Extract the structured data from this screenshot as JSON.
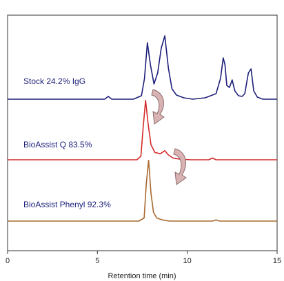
{
  "chart_data": {
    "type": "line",
    "xlabel": "Retention time (min)",
    "xlim": [
      0,
      15
    ],
    "xticks": [
      0,
      5,
      10,
      15
    ],
    "grid": false,
    "legend": "inline labels above each trace",
    "series": [
      {
        "name": "Stock 24.2% IgG",
        "color": "#1c1f7a",
        "x": [
          0,
          4.0,
          5.4,
          5.6,
          5.8,
          7.0,
          7.45,
          7.62,
          7.78,
          7.95,
          8.15,
          8.35,
          8.55,
          8.75,
          8.95,
          9.15,
          9.4,
          9.8,
          10.3,
          11.0,
          11.6,
          11.85,
          12.0,
          12.1,
          12.2,
          12.35,
          12.5,
          12.65,
          12.85,
          13.05,
          13.2,
          13.4,
          13.55,
          13.7,
          13.9,
          14.2,
          15
        ],
        "y": [
          0,
          0,
          0,
          0.04,
          0,
          0,
          0.05,
          0.3,
          0.82,
          0.5,
          0.22,
          0.38,
          0.74,
          0.92,
          0.45,
          0.15,
          0.06,
          0.02,
          0,
          0.02,
          0.08,
          0.3,
          0.6,
          0.5,
          0.2,
          0.17,
          0.28,
          0.12,
          0.05,
          0.04,
          0.08,
          0.38,
          0.44,
          0.12,
          0.03,
          0,
          0
        ],
        "baseline": 0.0
      },
      {
        "name": "BioAssist Q 83.5%",
        "color": "#d42a2a",
        "x": [
          0,
          7.2,
          7.42,
          7.55,
          7.68,
          7.82,
          7.98,
          8.2,
          8.5,
          8.75,
          8.95,
          9.2,
          9.6,
          10.2,
          11.2,
          11.4,
          11.6,
          12,
          15
        ],
        "y": [
          0,
          0,
          0.06,
          0.55,
          0.98,
          0.6,
          0.25,
          0.12,
          0.1,
          0.15,
          0.08,
          0.03,
          0.01,
          0,
          0,
          0.03,
          0,
          0,
          0
        ],
        "baseline": 0.0
      },
      {
        "name": "BioAssist Phenyl 92.3%",
        "color": "#a9682e",
        "x": [
          0,
          7.3,
          7.6,
          7.72,
          7.85,
          7.98,
          8.12,
          8.3,
          8.6,
          9.0,
          10.0,
          11.4,
          11.6,
          11.8,
          15
        ],
        "y": [
          0,
          0,
          0.05,
          0.6,
          0.98,
          0.45,
          0.14,
          0.05,
          0.02,
          0,
          0,
          0,
          0.02,
          0,
          0
        ],
        "baseline": 0.0
      }
    ],
    "annotations": [
      {
        "type": "curved-arrow",
        "from_x": 8.3,
        "to_x": 8.45,
        "color": "#c98a8a",
        "meaning": "between Stock and BioAssist Q"
      },
      {
        "type": "curved-arrow",
        "from_x": 9.25,
        "to_x": 9.55,
        "color": "#c98a8a",
        "meaning": "between BioAssist Q and BioAssist Phenyl"
      }
    ]
  }
}
